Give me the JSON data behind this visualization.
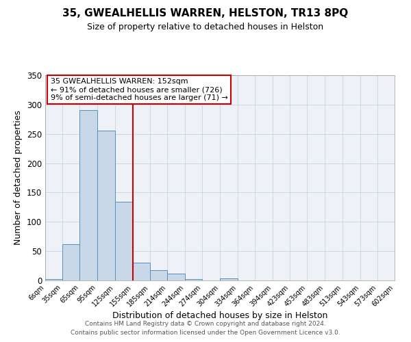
{
  "title": "35, GWEALHELLIS WARREN, HELSTON, TR13 8PQ",
  "subtitle": "Size of property relative to detached houses in Helston",
  "xlabel": "Distribution of detached houses by size in Helston",
  "ylabel": "Number of detached properties",
  "bin_edges": [
    6,
    35,
    65,
    95,
    125,
    155,
    185,
    214,
    244,
    274,
    304,
    334,
    364,
    394,
    423,
    453,
    483,
    513,
    543,
    573,
    602
  ],
  "bin_labels": [
    "6sqm",
    "35sqm",
    "65sqm",
    "95sqm",
    "125sqm",
    "155sqm",
    "185sqm",
    "214sqm",
    "244sqm",
    "274sqm",
    "304sqm",
    "334sqm",
    "364sqm",
    "394sqm",
    "423sqm",
    "453sqm",
    "483sqm",
    "513sqm",
    "543sqm",
    "573sqm",
    "602sqm"
  ],
  "counts": [
    2,
    62,
    291,
    255,
    134,
    30,
    18,
    12,
    2,
    0,
    4,
    0,
    0,
    0,
    0,
    0,
    0,
    0,
    0,
    0
  ],
  "bar_color": "#c8d8e8",
  "bar_edge_color": "#5590bb",
  "vline_x": 155,
  "vline_color": "#cc0000",
  "annotation_line1": "35 GWEALHELLIS WARREN: 152sqm",
  "annotation_line2": "← 91% of detached houses are smaller (726)",
  "annotation_line3": "9% of semi-detached houses are larger (71) →",
  "annotation_box_color": "white",
  "annotation_box_edge_color": "#cc0000",
  "ylim": [
    0,
    350
  ],
  "yticks": [
    0,
    50,
    100,
    150,
    200,
    250,
    300,
    350
  ],
  "footer_line1": "Contains HM Land Registry data © Crown copyright and database right 2024.",
  "footer_line2": "Contains public sector information licensed under the Open Government Licence v3.0.",
  "bg_color": "#eef2f7",
  "grid_color": "#c5d5e5"
}
